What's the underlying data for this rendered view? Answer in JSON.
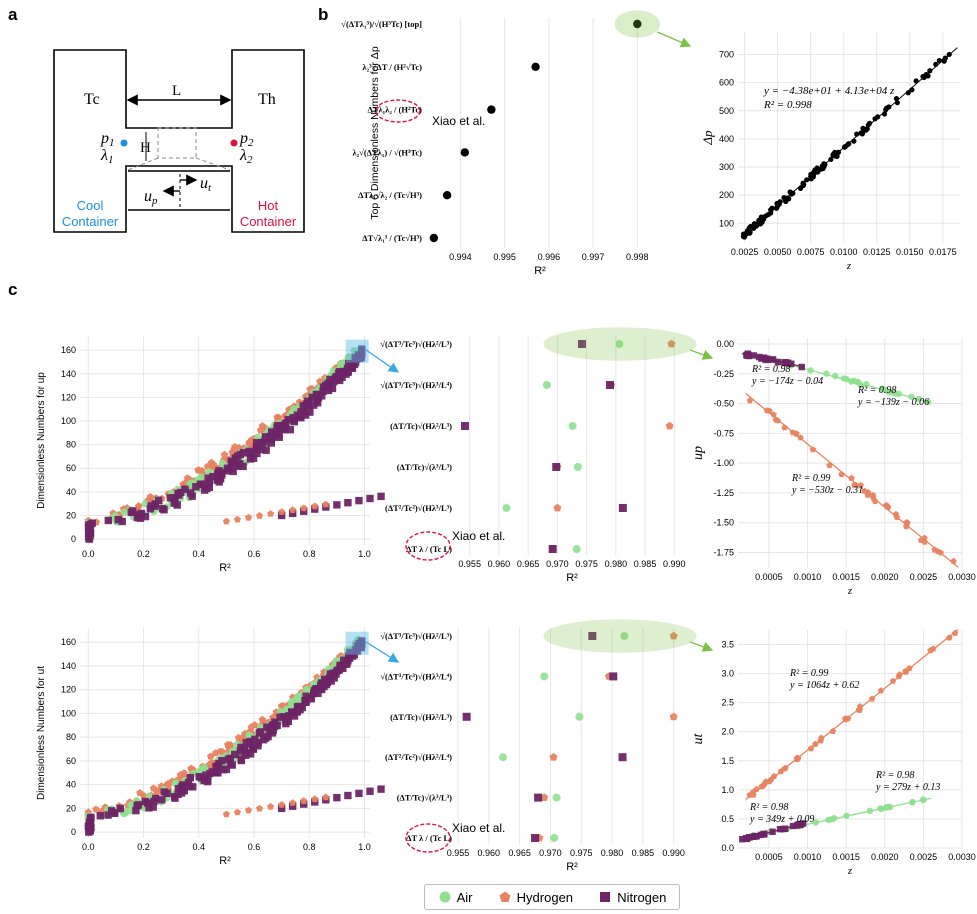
{
  "panel_labels": {
    "a": "a",
    "b": "b",
    "c": "c"
  },
  "schematic": {
    "t_cold": "Tc",
    "t_hot": "Th",
    "length": "L",
    "height": "H",
    "p1": "p1",
    "p2": "p2",
    "lambda1": "λ1",
    "lambda2": "λ2",
    "u_p": "up",
    "u_t": "ut",
    "cool_line1": "Cool",
    "cool_line2": "Container",
    "hot_line1": "Hot",
    "hot_line2": "Container",
    "cool_color": "#1a8fe0",
    "hot_color": "#e0103a"
  },
  "colors": {
    "air": "#8ee08f",
    "hydrogen": "#e8825f",
    "nitrogen": "#6e2466",
    "grid": "#e6e6e6",
    "highlight": "#7cc242",
    "sq": "#56bde9",
    "xiao": "#e0103a"
  },
  "xiao_label": "Xiao et al.",
  "chart_data": [
    {
      "id": "b_dot",
      "type": "scatter",
      "title": "",
      "ylabel": "Top 6 Dimensionless Numbers for Δp",
      "xlabel": "R²",
      "xlim": [
        0.9932,
        0.9984
      ],
      "xticks": [
        "0.994",
        "0.995",
        "0.996",
        "0.997",
        "0.998"
      ],
      "categories": [
        "√(ΔTλ₁³)/√(H³Tc) [top]",
        "λ₂³√ΔT / (H²√Tc)",
        "ΔTλ₁λ₂ / (H²Tc)",
        "λ₂√(ΔTλ₁) / √(H³Tc)",
        "ΔTλ₁√λ₂ / (Tc√H³)",
        "ΔT√λ₁³ / (Tc√H³)"
      ],
      "values": [
        0.998,
        0.9957,
        0.9947,
        0.9941,
        0.9937,
        0.9934
      ]
    },
    {
      "id": "b_fit",
      "type": "scatter",
      "xlabel": "z",
      "ylabel": "Δp",
      "xlim": [
        0.002,
        0.0188
      ],
      "ylim": [
        30,
        780
      ],
      "xticks": [
        "0.0025",
        "0.0050",
        "0.0075",
        "0.0100",
        "0.0125",
        "0.0150",
        "0.0175"
      ],
      "yticks": [
        "100",
        "200",
        "300",
        "400",
        "500",
        "600",
        "700"
      ],
      "fit": {
        "intercept": -43.8,
        "slope": 41300
      },
      "equation": "y = −4.38e+01 + 4.13e+04 z",
      "r2": "R² = 0.998"
    },
    {
      "id": "c1_scatter",
      "type": "scatter",
      "xlabel": "R²",
      "ylabel": "Dimensionless Numbers for up",
      "xlim": [
        -0.03,
        1.02
      ],
      "ylim": [
        -5,
        172
      ],
      "xticks": [
        "0.0",
        "0.2",
        "0.4",
        "0.6",
        "0.8",
        "1.0"
      ],
      "yticks": [
        "0",
        "20",
        "40",
        "60",
        "80",
        "100",
        "120",
        "140",
        "160"
      ],
      "series": [
        {
          "name": "Air",
          "n": 165
        },
        {
          "name": "Hydrogen",
          "n": 165
        },
        {
          "name": "Nitrogen",
          "n": 165
        }
      ]
    },
    {
      "id": "c1_dot",
      "type": "scatter",
      "xlabel": "R²",
      "xlim": [
        0.953,
        0.992
      ],
      "xticks": [
        "0.955",
        "0.960",
        "0.965",
        "0.970",
        "0.975",
        "0.980",
        "0.985",
        "0.990"
      ],
      "categories": [
        "√(ΔT³/Tc³)√(Hλ²/L³)",
        "√(ΔT³/Tc³)√(Hλ³/L⁴)",
        "(ΔT/Tc)√(Hλ²/L³)",
        "(ΔT/Tc)√(λ³/L³)",
        "(ΔT²/Tc²)√(Hλ³/L³)",
        "ΔT λ / (Tc L)"
      ],
      "series": [
        {
          "name": "Air",
          "values": [
            0.9806,
            0.9682,
            0.9726,
            0.9735,
            0.9613,
            0.9733
          ]
        },
        {
          "name": "Hydrogen",
          "values": [
            0.9895,
            0.9792,
            0.9892,
            0.97,
            0.97,
            0.9692
          ]
        },
        {
          "name": "Nitrogen",
          "values": [
            0.9742,
            0.979,
            0.9542,
            0.9698,
            0.9812,
            0.9692
          ]
        }
      ]
    },
    {
      "id": "c1_fit",
      "type": "scatter",
      "xlabel": "z",
      "ylabel": "up",
      "xlim": [
        0.0001,
        0.003
      ],
      "ylim": [
        -1.88,
        0.05
      ],
      "xticks": [
        "0.0005",
        "0.0010",
        "0.0015",
        "0.0020",
        "0.0025",
        "0.0030"
      ],
      "yticks": [
        "0.00",
        "-0.25",
        "-0.50",
        "-0.75",
        "-1.00",
        "-1.25",
        "-1.50",
        "-1.75"
      ],
      "fits": [
        {
          "series": "Air",
          "slope": -174,
          "intercept": -0.04,
          "r2": "R² = 0.98",
          "equation": "y = −174z − 0.04"
        },
        {
          "series": "Nitrogen",
          "slope": -139,
          "intercept": -0.06,
          "r2": "R² = 0.98",
          "equation": "y = −139z − 0.06"
        },
        {
          "series": "Hydrogen",
          "slope": -530,
          "intercept": -0.31,
          "r2": "R² = 0.99",
          "equation": "y = −530z − 0.31"
        }
      ]
    },
    {
      "id": "c2_scatter",
      "type": "scatter",
      "xlabel": "R²",
      "ylabel": "Dimensionless Numbers for ut",
      "xlim": [
        -0.03,
        1.02
      ],
      "ylim": [
        -5,
        172
      ],
      "xticks": [
        "0.0",
        "0.2",
        "0.4",
        "0.6",
        "0.8",
        "1.0"
      ],
      "yticks": [
        "0",
        "20",
        "40",
        "60",
        "80",
        "100",
        "120",
        "140",
        "160"
      ],
      "series": [
        {
          "name": "Air",
          "n": 165
        },
        {
          "name": "Hydrogen",
          "n": 165
        },
        {
          "name": "Nitrogen",
          "n": 165
        }
      ]
    },
    {
      "id": "c2_dot",
      "type": "scatter",
      "xlabel": "R²",
      "xlim": [
        0.955,
        0.992
      ],
      "xticks": [
        "0.955",
        "0.960",
        "0.965",
        "0.970",
        "0.975",
        "0.980",
        "0.985",
        "0.990"
      ],
      "categories": [
        "√(ΔT³/Tc³)√(Hλ²/L³)",
        "√(ΔT³/Tc³)√(Hλ³/L⁴)",
        "(ΔT/Tc)√(Hλ²/L³)",
        "(ΔT²/Tc²)√(Hλ²/L⁴)",
        "(ΔT/Tc)√(λ³/L³)",
        "ΔT λ / (Tc L)"
      ],
      "series": [
        {
          "name": "Air",
          "values": [
            0.982,
            0.969,
            0.9747,
            0.9623,
            0.971,
            0.9706
          ]
        },
        {
          "name": "Hydrogen",
          "values": [
            0.99,
            0.9795,
            0.99,
            0.9705,
            0.969,
            0.9682
          ]
        },
        {
          "name": "Nitrogen",
          "values": [
            0.9768,
            0.9802,
            0.9564,
            0.9817,
            0.968,
            0.9675
          ]
        }
      ]
    },
    {
      "id": "c2_fit",
      "type": "scatter",
      "xlabel": "z",
      "ylabel": "ut",
      "xlim": [
        0.0001,
        0.003
      ],
      "ylim": [
        0.0,
        3.75
      ],
      "xticks": [
        "0.0005",
        "0.0010",
        "0.0015",
        "0.0020",
        "0.0025",
        "0.0030"
      ],
      "yticks": [
        "0.0",
        "0.5",
        "1.0",
        "1.5",
        "2.0",
        "2.5",
        "3.0",
        "3.5"
      ],
      "fits": [
        {
          "series": "Hydrogen",
          "slope": 1064,
          "intercept": 0.62,
          "r2": "R² = 0.99",
          "equation": "y = 1064z + 0.62"
        },
        {
          "series": "Air",
          "slope": 279,
          "intercept": 0.13,
          "r2": "R² = 0.98",
          "equation": "y = 279z + 0.13"
        },
        {
          "series": "Nitrogen",
          "slope": 349,
          "intercept": 0.09,
          "r2": "R² = 0.98",
          "equation": "y = 349z + 0.09"
        }
      ]
    }
  ],
  "legend": [
    {
      "name": "Air",
      "label": "Air"
    },
    {
      "name": "Hydrogen",
      "label": "Hydrogen"
    },
    {
      "name": "Nitrogen",
      "label": "Nitrogen"
    }
  ]
}
